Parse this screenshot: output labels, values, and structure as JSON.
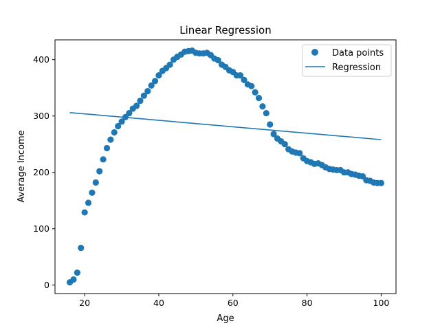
{
  "chart_data": {
    "type": "scatter",
    "title": "Linear Regression",
    "xlabel": "Age",
    "ylabel": "Average Income",
    "xlim": [
      12,
      104
    ],
    "ylim": [
      -15,
      435
    ],
    "xticks": [
      20,
      40,
      60,
      80,
      100
    ],
    "yticks": [
      0,
      100,
      200,
      300,
      400
    ],
    "grid": false,
    "legend_placement": "top-right",
    "colors": {
      "series": "#1f77b4"
    },
    "series": [
      {
        "name": "Data points",
        "kind": "scatter",
        "x": [
          16,
          17,
          18,
          19,
          20,
          21,
          22,
          23,
          24,
          25,
          26,
          27,
          28,
          29,
          30,
          31,
          32,
          33,
          34,
          35,
          36,
          37,
          38,
          39,
          40,
          41,
          42,
          43,
          44,
          45,
          46,
          47,
          48,
          49,
          50,
          51,
          52,
          53,
          54,
          55,
          56,
          57,
          58,
          59,
          60,
          61,
          62,
          63,
          64,
          65,
          66,
          67,
          68,
          69,
          70,
          71,
          72,
          73,
          74,
          75,
          76,
          77,
          78,
          79,
          80,
          81,
          82,
          83,
          84,
          85,
          86,
          87,
          88,
          89,
          90,
          91,
          92,
          93,
          94,
          95,
          96,
          97,
          98,
          99,
          100
        ],
        "y": [
          5,
          10,
          22,
          66,
          129,
          146,
          164,
          182,
          202,
          223,
          243,
          258,
          271,
          282,
          290,
          298,
          305,
          313,
          318,
          327,
          336,
          344,
          354,
          362,
          372,
          380,
          385,
          391,
          400,
          405,
          409,
          414,
          415,
          416,
          412,
          411,
          411,
          412,
          408,
          402,
          399,
          391,
          387,
          381,
          378,
          372,
          372,
          364,
          356,
          353,
          342,
          332,
          317,
          305,
          285,
          268,
          260,
          255,
          250,
          241,
          237,
          235,
          234,
          225,
          220,
          218,
          215,
          216,
          213,
          209,
          206,
          205,
          204,
          204,
          200,
          200,
          197,
          196,
          194,
          193,
          186,
          185,
          182,
          181,
          181
        ]
      },
      {
        "name": "Regression",
        "kind": "line",
        "x": [
          16,
          100
        ],
        "y": [
          306,
          258
        ]
      }
    ]
  }
}
